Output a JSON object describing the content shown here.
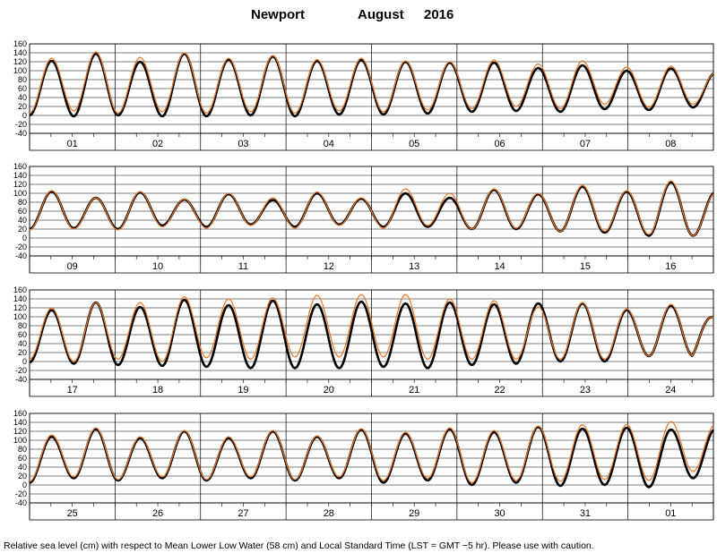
{
  "title": {
    "station": "Newport",
    "month": "August",
    "year": "2016"
  },
  "caption": "Relative sea level (cm) with respect to Mean Lower Low Water (58 cm) and Local Standard Time (LST = GMT −5 hr). Please use with caution.",
  "colors": {
    "observed": "#000000",
    "predicted": "#e87722",
    "grid": "#000000"
  },
  "chart_data": {
    "type": "line",
    "ylabel": "",
    "xlabel": "",
    "ylim": [
      -40,
      160
    ],
    "yticks": [
      -40,
      -20,
      0,
      20,
      40,
      60,
      80,
      100,
      120,
      140,
      160
    ],
    "grid": true,
    "series_names": {
      "observed": "",
      "predicted": ""
    },
    "panels": [
      {
        "days": [
          "01",
          "02",
          "03",
          "04",
          "05",
          "06",
          "07",
          "08"
        ],
        "observed_highs": [
          122,
          138,
          120,
          138,
          125,
          132,
          122,
          124,
          120,
          118,
          118,
          106,
          112,
          100,
          105,
          95
        ],
        "observed_lows": [
          0,
          -2,
          0,
          -2,
          -2,
          0,
          -2,
          2,
          2,
          4,
          8,
          10,
          8,
          14,
          12,
          18
        ],
        "predicted_highs": [
          128,
          142,
          130,
          140,
          128,
          134,
          125,
          128,
          122,
          120,
          124,
          115,
          122,
          108,
          110,
          95
        ],
        "predicted_lows": [
          5,
          10,
          5,
          8,
          5,
          8,
          5,
          10,
          8,
          12,
          15,
          20,
          15,
          25,
          18,
          25
        ]
      },
      {
        "days": [
          "09",
          "10",
          "11",
          "12",
          "13",
          "14",
          "15",
          "16"
        ],
        "observed_highs": [
          104,
          90,
          102,
          86,
          98,
          85,
          100,
          88,
          100,
          90,
          108,
          98,
          115,
          104,
          125,
          102
        ],
        "observed_lows": [
          20,
          22,
          20,
          28,
          25,
          30,
          25,
          30,
          25,
          25,
          20,
          20,
          15,
          12,
          5,
          5
        ],
        "predicted_highs": [
          106,
          90,
          104,
          87,
          100,
          90,
          103,
          90,
          110,
          100,
          110,
          100,
          118,
          106,
          128,
          100
        ],
        "predicted_lows": [
          18,
          20,
          18,
          25,
          22,
          28,
          22,
          28,
          22,
          28,
          20,
          22,
          15,
          15,
          8,
          5
        ]
      },
      {
        "days": [
          "17",
          "18",
          "19",
          "20",
          "21",
          "22",
          "23",
          "24"
        ],
        "observed_highs": [
          115,
          132,
          122,
          138,
          126,
          136,
          128,
          134,
          130,
          132,
          128,
          130,
          130,
          115,
          125,
          100
        ],
        "observed_lows": [
          -2,
          -5,
          -8,
          -10,
          -12,
          -15,
          -15,
          -15,
          -12,
          -15,
          -8,
          -5,
          0,
          0,
          12,
          12
        ],
        "predicted_highs": [
          120,
          132,
          132,
          145,
          140,
          142,
          148,
          150,
          150,
          140,
          136,
          122,
          132,
          118,
          128,
          100
        ],
        "predicted_lows": [
          5,
          0,
          5,
          0,
          8,
          5,
          10,
          10,
          10,
          5,
          5,
          5,
          5,
          5,
          12,
          12
        ],
        "panel_end": 100
      },
      {
        "days": [
          "25",
          "26",
          "27",
          "28",
          "29",
          "30",
          "31",
          "01"
        ],
        "observed_highs": [
          108,
          125,
          105,
          120,
          105,
          120,
          108,
          124,
          115,
          125,
          118,
          130,
          126,
          128,
          124,
          125
        ],
        "observed_lows": [
          5,
          15,
          10,
          15,
          10,
          15,
          10,
          15,
          5,
          10,
          0,
          5,
          -2,
          0,
          -5,
          15
        ],
        "predicted_highs": [
          112,
          128,
          108,
          122,
          108,
          122,
          110,
          126,
          118,
          128,
          122,
          132,
          135,
          135,
          142,
          135
        ],
        "predicted_lows": [
          8,
          18,
          12,
          18,
          12,
          18,
          12,
          18,
          10,
          15,
          5,
          10,
          8,
          12,
          10,
          30
        ]
      }
    ]
  }
}
